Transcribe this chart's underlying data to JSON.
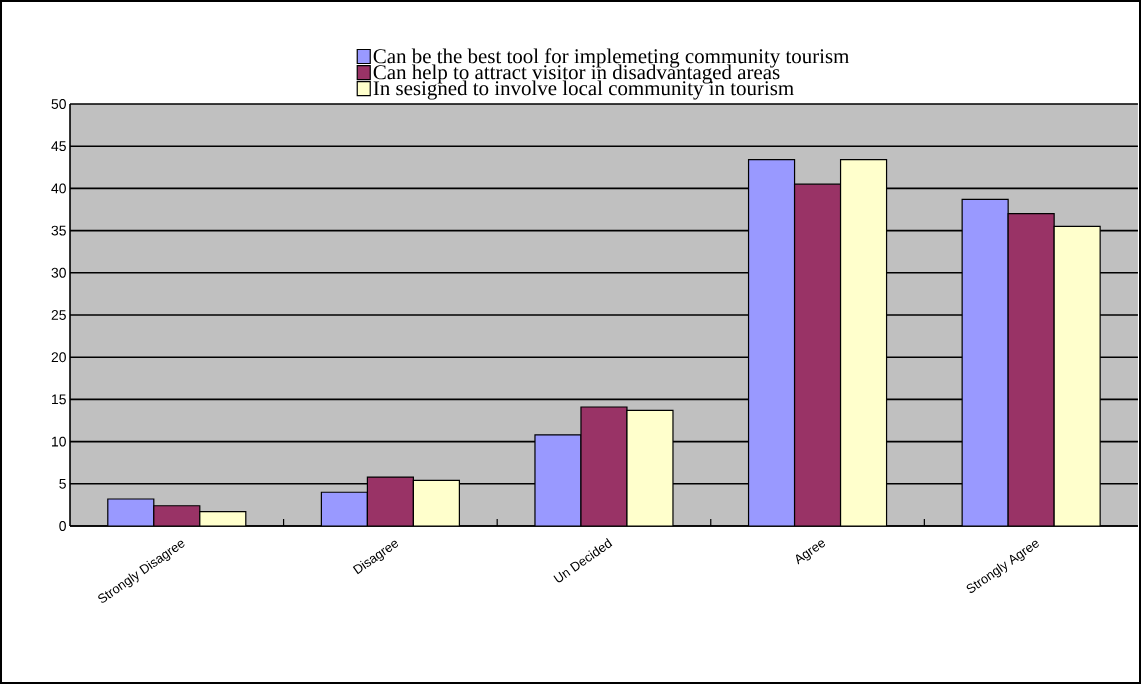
{
  "chart_data": {
    "type": "bar",
    "categories": [
      "Strongly Disagree",
      "Disagree",
      "Un Decided",
      "Agree",
      "Strongly Agree"
    ],
    "series": [
      {
        "name": "Can be the best tool for implemeting community tourism",
        "color": "#9999ff",
        "values": [
          3.2,
          4.0,
          10.8,
          43.4,
          38.7
        ]
      },
      {
        "name": "Can help to attract visitor in disadvantaged areas",
        "color": "#993366",
        "values": [
          2.4,
          5.8,
          14.1,
          40.5,
          37.0
        ]
      },
      {
        "name": "In sesigned to involve local community in tourism",
        "color": "#ffffcc",
        "values": [
          1.7,
          5.4,
          13.7,
          43.4,
          35.5
        ]
      }
    ],
    "ylim": [
      0,
      50
    ],
    "yticks": [
      0,
      5,
      10,
      15,
      20,
      25,
      30,
      35,
      40,
      45,
      50
    ],
    "grid": "y",
    "legend": "top"
  }
}
